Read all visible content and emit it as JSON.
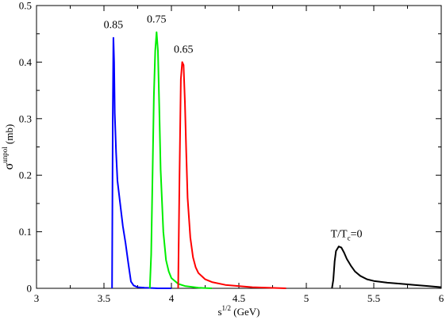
{
  "chart_data": {
    "type": "line",
    "xlabel": {
      "base": "s",
      "sup": "1/2",
      "rest": " (GeV)"
    },
    "ylabel": {
      "base": "σ",
      "sup": "unpol",
      "rest": " (mb)"
    },
    "xlim": [
      3,
      6
    ],
    "ylim": [
      0,
      0.5
    ],
    "xticks": [
      3,
      3.5,
      4,
      4.5,
      5,
      5.5,
      6
    ],
    "xtick_labels": [
      "3",
      "3.5",
      "4",
      "4.5",
      "5",
      "5.5",
      "6"
    ],
    "yticks": [
      0,
      0.1,
      0.2,
      0.3,
      0.4,
      0.5
    ],
    "ytick_labels": [
      "0",
      "0.1",
      "0.2",
      "0.3",
      "0.4",
      "0.5"
    ],
    "grid": false,
    "legend": "none",
    "series": [
      {
        "color": "#0000ff",
        "x": [
          3.56,
          3.565,
          3.57,
          3.575,
          3.58,
          3.59,
          3.6,
          3.62,
          3.64,
          3.66,
          3.68,
          3.7,
          3.72,
          3.75,
          3.8,
          3.9,
          4.0
        ],
        "y": [
          0.0,
          0.3,
          0.443,
          0.4,
          0.31,
          0.24,
          0.19,
          0.15,
          0.11,
          0.08,
          0.045,
          0.012,
          0.005,
          0.002,
          0.001,
          0.0,
          0.0
        ]
      },
      {
        "color": "#00ee00",
        "x": [
          3.84,
          3.85,
          3.86,
          3.87,
          3.88,
          3.89,
          3.9,
          3.91,
          3.92,
          3.94,
          3.96,
          3.98,
          4.0,
          4.05,
          4.1,
          4.2,
          4.3
        ],
        "y": [
          0.0,
          0.06,
          0.2,
          0.34,
          0.42,
          0.453,
          0.42,
          0.32,
          0.21,
          0.1,
          0.05,
          0.03,
          0.018,
          0.008,
          0.004,
          0.001,
          0.0
        ]
      },
      {
        "color": "#ff0000",
        "x": [
          4.05,
          4.06,
          4.07,
          4.08,
          4.09,
          4.1,
          4.11,
          4.12,
          4.14,
          4.16,
          4.18,
          4.2,
          4.25,
          4.3,
          4.4,
          4.6,
          4.85
        ],
        "y": [
          0.0,
          0.2,
          0.37,
          0.4,
          0.395,
          0.33,
          0.24,
          0.16,
          0.09,
          0.055,
          0.037,
          0.027,
          0.016,
          0.011,
          0.006,
          0.002,
          0.0
        ]
      },
      {
        "color": "#000000",
        "x": [
          5.19,
          5.2,
          5.21,
          5.22,
          5.24,
          5.26,
          5.28,
          5.3,
          5.33,
          5.36,
          5.4,
          5.45,
          5.5,
          5.6,
          5.7,
          5.8,
          5.9,
          6.0
        ],
        "y": [
          0.0,
          0.015,
          0.048,
          0.066,
          0.074,
          0.072,
          0.063,
          0.052,
          0.04,
          0.03,
          0.022,
          0.016,
          0.013,
          0.01,
          0.008,
          0.006,
          0.004,
          0.002
        ]
      }
    ],
    "annotations": [
      {
        "text": "0.85",
        "x": 3.57,
        "y": 0.46
      },
      {
        "text": "0.75",
        "x": 3.89,
        "y": 0.47
      },
      {
        "text": "0.65",
        "x": 4.09,
        "y": 0.417
      },
      {
        "main": "T/T",
        "sub": "c",
        "rest": "=0",
        "x": 5.18,
        "y": 0.09
      }
    ]
  }
}
